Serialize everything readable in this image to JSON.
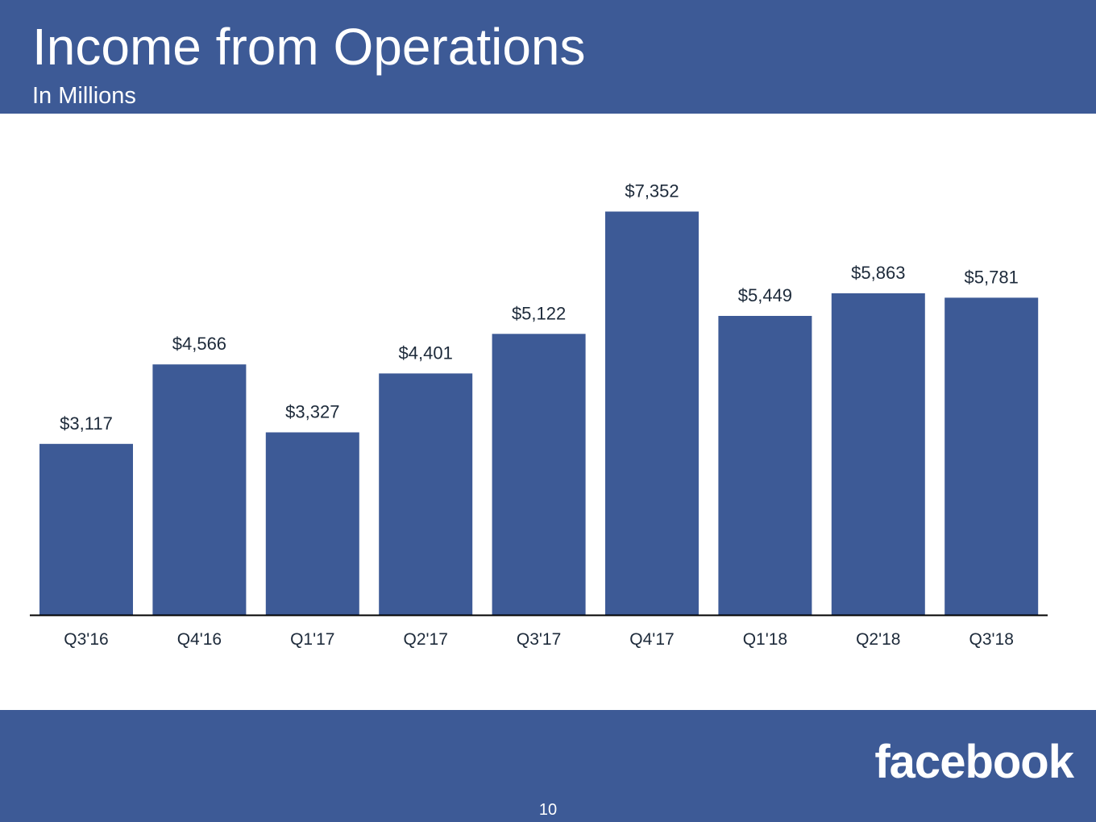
{
  "slide": {
    "title": "Income from Operations",
    "subtitle": "In Millions",
    "logo_text": "facebook",
    "page_number": "10"
  },
  "colors": {
    "brand": "#3d5a96",
    "bar": "#3d5a96",
    "text": "#1d2a3a",
    "axis": "#000000"
  },
  "chart_data": {
    "type": "bar",
    "title": "Income from Operations",
    "subtitle": "In Millions",
    "categories": [
      "Q3'16",
      "Q4'16",
      "Q1'17",
      "Q2'17",
      "Q3'17",
      "Q4'17",
      "Q1'18",
      "Q2'18",
      "Q3'18"
    ],
    "values": [
      3117,
      4566,
      3327,
      4401,
      5122,
      7352,
      5449,
      5863,
      5781
    ],
    "data_labels": [
      "$3,117",
      "$4,566",
      "$3,327",
      "$4,401",
      "$5,122",
      "$7,352",
      "$5,449",
      "$5,863",
      "$5,781"
    ],
    "xlabel": "",
    "ylabel": "",
    "ylim": [
      0,
      8000
    ],
    "grid": false,
    "legend": "none"
  }
}
